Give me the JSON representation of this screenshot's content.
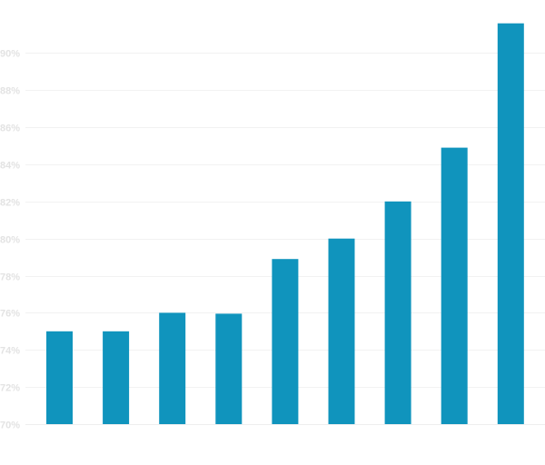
{
  "chart_data": {
    "type": "bar",
    "title": "",
    "xlabel": "",
    "ylabel": "",
    "ylim": [
      70,
      92
    ],
    "yticks": [
      70,
      72,
      74,
      76,
      78,
      80,
      82,
      84,
      86,
      88,
      90
    ],
    "ytick_labels": [
      "70%",
      "72%",
      "74%",
      "76%",
      "78%",
      "80%",
      "82%",
      "84%",
      "86%",
      "88%",
      "90%"
    ],
    "values": [
      75.0,
      75.0,
      76.0,
      75.95,
      78.9,
      80.0,
      82.0,
      84.9,
      91.6
    ],
    "grid": true,
    "legend": "none",
    "colors": {
      "bar": "#1094bd",
      "tick_label": "#e3e3e3",
      "grid": "#f2f2f2"
    }
  }
}
